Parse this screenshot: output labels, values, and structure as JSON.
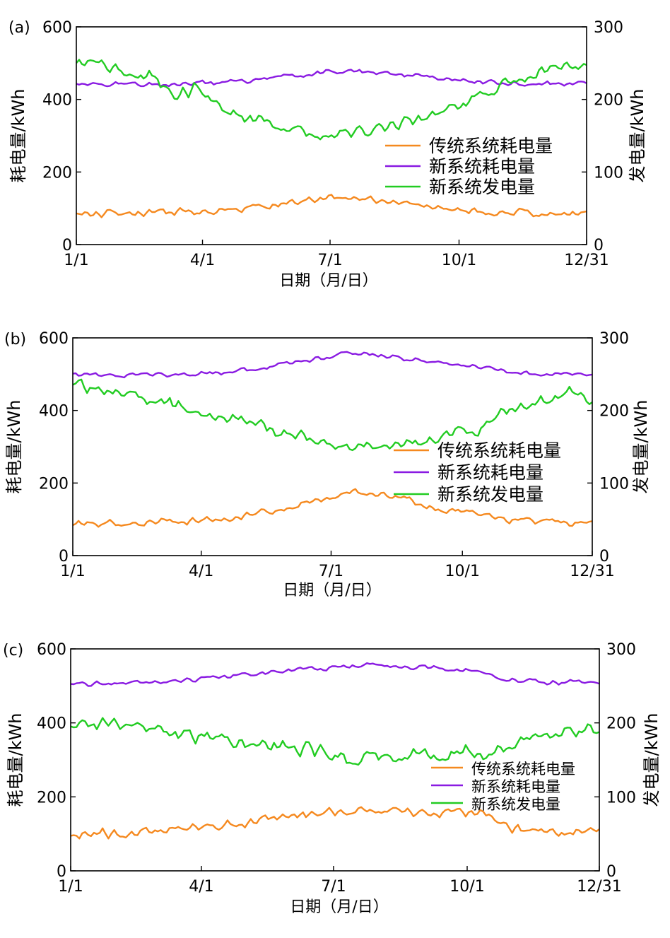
{
  "colors": {
    "traditional": "#f5891f",
    "new_consumption": "#8a1be2",
    "new_generation": "#22cc22",
    "axis": "#000000"
  },
  "chart_data": [
    {
      "type": "line",
      "panel_label": "(a)",
      "xlabel": "日期（月/日）",
      "ylabel": "耗电量/kWh",
      "y2label": "发电量/kWh",
      "ylim": [
        0,
        600
      ],
      "y2lim": [
        0,
        300
      ],
      "yticks": [
        "0",
        "200",
        "400",
        "600"
      ],
      "y2ticks": [
        "0",
        "100",
        "200",
        "300"
      ],
      "xticks": [
        "1/1",
        "4/1",
        "7/1",
        "10/1",
        "12/31"
      ],
      "legend_position": "center-right",
      "series": [
        {
          "name": "传统系统耗电量",
          "axis": "left",
          "noise": 12,
          "points": [
            [
              0,
              85
            ],
            [
              30,
              86
            ],
            [
              60,
              88
            ],
            [
              90,
              92
            ],
            [
              120,
              100
            ],
            [
              150,
              112
            ],
            [
              175,
              128
            ],
            [
              200,
              128
            ],
            [
              230,
              115
            ],
            [
              260,
              100
            ],
            [
              300,
              90
            ],
            [
              330,
              86
            ],
            [
              364,
              85
            ]
          ]
        },
        {
          "name": "新系统耗电量",
          "axis": "left",
          "noise": 8,
          "points": [
            [
              0,
              443
            ],
            [
              60,
              443
            ],
            [
              100,
              445
            ],
            [
              130,
              455
            ],
            [
              160,
              468
            ],
            [
              190,
              478
            ],
            [
              220,
              472
            ],
            [
              250,
              462
            ],
            [
              280,
              450
            ],
            [
              320,
              444
            ],
            [
              364,
              443
            ]
          ]
        },
        {
          "name": "新系统发电量",
          "axis": "right",
          "noise": 10,
          "points": [
            [
              0,
              247
            ],
            [
              15,
              250
            ],
            [
              35,
              237
            ],
            [
              55,
              230
            ],
            [
              70,
              205
            ],
            [
              85,
              215
            ],
            [
              100,
              195
            ],
            [
              120,
              170
            ],
            [
              140,
              168
            ],
            [
              160,
              155
            ],
            [
              180,
              148
            ],
            [
              200,
              155
            ],
            [
              230,
              165
            ],
            [
              260,
              180
            ],
            [
              290,
              205
            ],
            [
              310,
              225
            ],
            [
              330,
              240
            ],
            [
              350,
              245
            ],
            [
              364,
              247
            ]
          ]
        }
      ]
    },
    {
      "type": "line",
      "panel_label": "(b)",
      "xlabel": "日期（月/日）",
      "ylabel": "耗电量/kWh",
      "y2label": "发电量/kWh",
      "ylim": [
        0,
        600
      ],
      "y2lim": [
        0,
        300
      ],
      "yticks": [
        "0",
        "200",
        "400",
        "600"
      ],
      "y2ticks": [
        "0",
        "100",
        "200",
        "300"
      ],
      "xticks": [
        "1/1",
        "4/1",
        "7/1",
        "10/1",
        "12/31"
      ],
      "legend_position": "center-right",
      "series": [
        {
          "name": "传统系统耗电量",
          "axis": "left",
          "noise": 12,
          "points": [
            [
              0,
              88
            ],
            [
              40,
              90
            ],
            [
              80,
              95
            ],
            [
              120,
              108
            ],
            [
              150,
              130
            ],
            [
              180,
              160
            ],
            [
              195,
              180
            ],
            [
              215,
              170
            ],
            [
              240,
              150
            ],
            [
              255,
              130
            ],
            [
              280,
              115
            ],
            [
              300,
              100
            ],
            [
              330,
              92
            ],
            [
              364,
              90
            ]
          ]
        },
        {
          "name": "新系统耗电量",
          "axis": "left",
          "noise": 8,
          "points": [
            [
              0,
              497
            ],
            [
              60,
              498
            ],
            [
              100,
              505
            ],
            [
              140,
              520
            ],
            [
              170,
              540
            ],
            [
              190,
              558
            ],
            [
              210,
              555
            ],
            [
              240,
              540
            ],
            [
              270,
              525
            ],
            [
              300,
              510
            ],
            [
              330,
              500
            ],
            [
              364,
              498
            ]
          ]
        },
        {
          "name": "新系统发电量",
          "axis": "right",
          "noise": 10,
          "points": [
            [
              0,
              235
            ],
            [
              30,
              225
            ],
            [
              60,
              215
            ],
            [
              90,
              195
            ],
            [
              120,
              185
            ],
            [
              150,
              170
            ],
            [
              170,
              160
            ],
            [
              190,
              150
            ],
            [
              210,
              150
            ],
            [
              240,
              155
            ],
            [
              265,
              165
            ],
            [
              285,
              175
            ],
            [
              300,
              195
            ],
            [
              330,
              215
            ],
            [
              350,
              225
            ],
            [
              364,
              215
            ]
          ]
        }
      ]
    },
    {
      "type": "line",
      "panel_label": "(c)",
      "xlabel": "日期（月/日）",
      "ylabel": "耗电量/kWh",
      "y2label": "发电量/kWh",
      "ylim": [
        0,
        600
      ],
      "y2lim": [
        0,
        300
      ],
      "yticks": [
        "0",
        "200",
        "400",
        "600"
      ],
      "y2ticks": [
        "0",
        "100",
        "200",
        "300"
      ],
      "xticks": [
        "1/1",
        "4/1",
        "7/1",
        "10/1",
        "12/31"
      ],
      "legend_position": "center-right",
      "series": [
        {
          "name": "传统系统耗电量",
          "axis": "left",
          "noise": 16,
          "points": [
            [
              0,
              100
            ],
            [
              40,
              100
            ],
            [
              70,
              112
            ],
            [
              100,
              122
            ],
            [
              130,
              135
            ],
            [
              160,
              150
            ],
            [
              190,
              165
            ],
            [
              220,
              165
            ],
            [
              250,
              160
            ],
            [
              290,
              155
            ],
            [
              300,
              120
            ],
            [
              330,
              105
            ],
            [
              364,
              105
            ]
          ]
        },
        {
          "name": "新系统耗电量",
          "axis": "left",
          "noise": 8,
          "points": [
            [
              0,
              505
            ],
            [
              50,
              508
            ],
            [
              80,
              515
            ],
            [
              120,
              530
            ],
            [
              160,
              545
            ],
            [
              190,
              550
            ],
            [
              210,
              558
            ],
            [
              240,
              550
            ],
            [
              280,
              540
            ],
            [
              300,
              520
            ],
            [
              330,
              510
            ],
            [
              364,
              508
            ]
          ]
        },
        {
          "name": "新系统发电量",
          "axis": "right",
          "noise": 12,
          "points": [
            [
              0,
              195
            ],
            [
              20,
              200
            ],
            [
              50,
              195
            ],
            [
              70,
              185
            ],
            [
              90,
              180
            ],
            [
              120,
              172
            ],
            [
              150,
              165
            ],
            [
              180,
              160
            ],
            [
              200,
              150
            ],
            [
              230,
              155
            ],
            [
              260,
              158
            ],
            [
              290,
              160
            ],
            [
              300,
              170
            ],
            [
              330,
              185
            ],
            [
              364,
              190
            ]
          ]
        }
      ]
    }
  ]
}
